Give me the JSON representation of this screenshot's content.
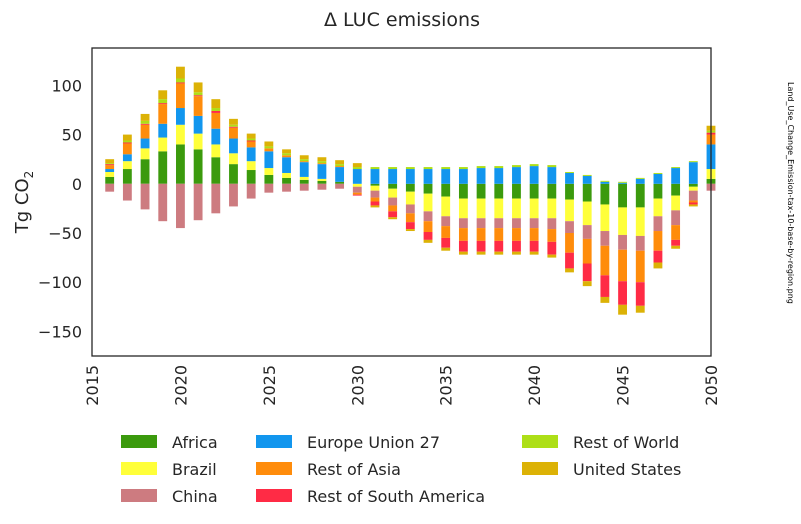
{
  "chart_data": {
    "type": "bar",
    "stacked": true,
    "title": "Δ LUC emissions",
    "ylabel_base": "Tg CO",
    "ylabel_sub": "2",
    "xlabel": "",
    "side_note": "Land_Use_Change_Emission-tax-10-base-by-region.png",
    "xlim": [
      2015,
      2050
    ],
    "ylim": [
      -175,
      138
    ],
    "xticks": [
      2015,
      2020,
      2025,
      2030,
      2035,
      2040,
      2045,
      2050
    ],
    "xtick_labels": [
      "2015",
      "2020",
      "2025",
      "2030",
      "2035",
      "2040",
      "2045",
      "2050"
    ],
    "yticks": [
      100,
      50,
      0,
      -50,
      -100,
      -150
    ],
    "ytick_labels": [
      "100",
      "50",
      "0",
      "−50",
      "−100",
      "−150"
    ],
    "grid": false,
    "legend_position": "bottom",
    "x": [
      2016,
      2017,
      2018,
      2019,
      2020,
      2021,
      2022,
      2023,
      2024,
      2025,
      2026,
      2027,
      2028,
      2029,
      2030,
      2031,
      2032,
      2033,
      2034,
      2035,
      2036,
      2037,
      2038,
      2039,
      2040,
      2041,
      2042,
      2043,
      2044,
      2045,
      2046,
      2047,
      2048,
      2049,
      2050
    ],
    "series": [
      {
        "name": "Africa",
        "color": "#3b9a0d",
        "values": [
          7,
          15,
          25,
          33,
          40,
          35,
          27,
          20,
          14,
          9,
          6,
          4,
          3,
          2,
          0,
          -2,
          -5,
          -8,
          -10,
          -13,
          -15,
          -15,
          -15,
          -15,
          -15,
          -15,
          -16,
          -18,
          -21,
          -24,
          -24,
          -15,
          -12,
          -3,
          5
        ]
      },
      {
        "name": "Brazil",
        "color": "#ffff3a",
        "values": [
          5,
          8,
          11,
          14,
          20,
          16,
          13,
          11,
          9,
          7,
          5,
          3,
          2,
          0,
          -3,
          -5,
          -9,
          -13,
          -18,
          -20,
          -20,
          -20,
          -20,
          -20,
          -20,
          -20,
          -22,
          -24,
          -27,
          -28,
          -29,
          -18,
          -15,
          -4,
          10
        ]
      },
      {
        "name": "China",
        "color": "#cd7b80",
        "values": [
          -8,
          -17,
          -26,
          -38,
          -45,
          -37,
          -30,
          -23,
          -15,
          -9,
          -8,
          -7,
          -6,
          -5,
          -6,
          -7,
          -8,
          -9,
          -10,
          -10,
          -10,
          -10,
          -10,
          -10,
          -10,
          -11,
          -12,
          -14,
          -15,
          -15,
          -15,
          -15,
          -15,
          -10,
          -7
        ]
      },
      {
        "name": "Europe Union 27",
        "color": "#1296ee",
        "values": [
          3,
          7,
          10,
          14,
          17,
          18,
          16,
          15,
          14,
          17,
          16,
          15,
          15,
          15,
          15,
          15,
          15,
          15,
          15,
          15,
          15,
          16,
          16,
          17,
          18,
          17,
          11,
          8,
          2,
          1,
          5,
          10,
          16,
          22,
          25
        ]
      },
      {
        "name": "Rest of Asia",
        "color": "#ff8c0b",
        "values": [
          4,
          11,
          14,
          20,
          25,
          20,
          16,
          11,
          6,
          3,
          2,
          1,
          1,
          1,
          -2,
          -4,
          -6,
          -9,
          -11,
          -12,
          -13,
          -13,
          -13,
          -13,
          -13,
          -13,
          -20,
          -25,
          -30,
          -32,
          -32,
          -20,
          -15,
          -2,
          10
        ]
      },
      {
        "name": "Rest of South America",
        "color": "#ff2b45",
        "values": [
          1,
          1,
          1,
          1,
          1,
          1,
          2,
          1,
          1,
          0,
          0,
          0,
          0,
          0,
          -1,
          -4,
          -6,
          -7,
          -8,
          -10,
          -11,
          -11,
          -11,
          -11,
          -11,
          -13,
          -16,
          -18,
          -22,
          -24,
          -24,
          -12,
          -6,
          -2,
          2
        ]
      },
      {
        "name": "Rest of World",
        "color": "#addf17",
        "values": [
          1,
          2,
          3,
          4,
          4,
          3,
          3,
          2,
          2,
          2,
          2,
          2,
          2,
          2,
          2,
          2,
          2,
          2,
          2,
          2,
          2,
          2,
          2,
          2,
          2,
          2,
          1,
          1,
          1,
          1,
          1,
          1,
          1,
          1,
          2
        ]
      },
      {
        "name": "United States",
        "color": "#dcb206",
        "values": [
          4,
          6,
          7,
          9,
          12,
          10,
          9,
          6,
          5,
          5,
          4,
          4,
          4,
          4,
          4,
          -2,
          -2,
          -2,
          -3,
          -3,
          -3,
          -3,
          -3,
          -3,
          -3,
          -3,
          -4,
          -5,
          -6,
          -10,
          -7,
          -6,
          -3,
          -2,
          5
        ]
      }
    ]
  }
}
